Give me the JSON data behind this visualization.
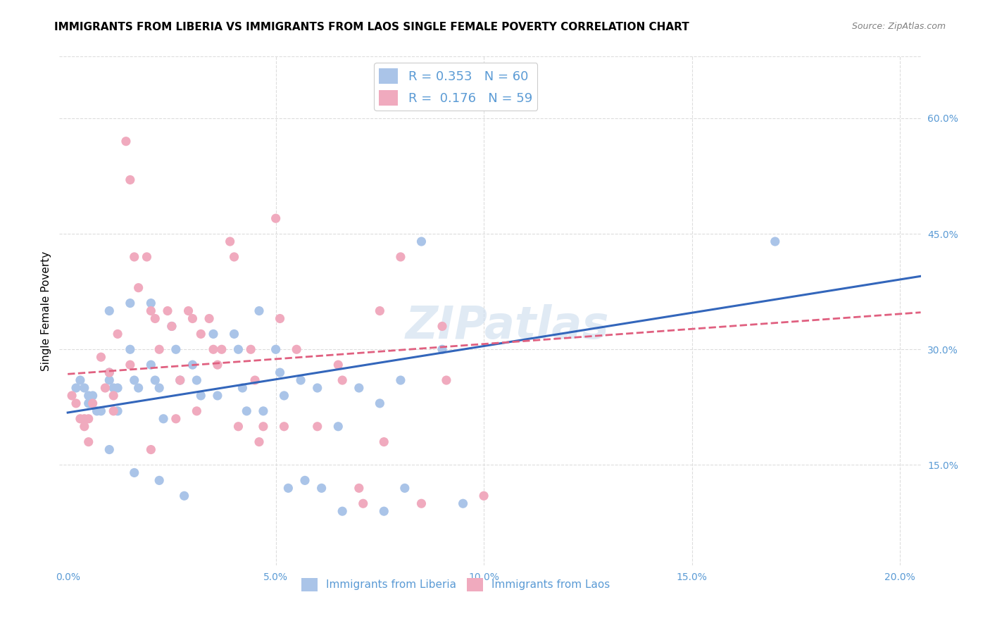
{
  "title": "IMMIGRANTS FROM LIBERIA VS IMMIGRANTS FROM LAOS SINGLE FEMALE POVERTY CORRELATION CHART",
  "source": "Source: ZipAtlas.com",
  "xlabel_ticks": [
    "0.0%",
    "5.0%",
    "10.0%",
    "15.0%",
    "20.0%"
  ],
  "xlabel_tick_vals": [
    0.0,
    0.05,
    0.1,
    0.15,
    0.2
  ],
  "ylabel": "Single Female Poverty",
  "right_ytick_labels": [
    "60.0%",
    "45.0%",
    "30.0%",
    "15.0%"
  ],
  "right_ytick_vals": [
    0.6,
    0.45,
    0.3,
    0.15
  ],
  "xlim": [
    -0.002,
    0.205
  ],
  "ylim": [
    0.02,
    0.68
  ],
  "legend_liberia_R": "0.353",
  "legend_liberia_N": "60",
  "legend_laos_R": "0.176",
  "legend_laos_N": "59",
  "liberia_color": "#aac4e8",
  "laos_color": "#f0aabe",
  "liberia_line_color": "#3366bb",
  "laos_line_color": "#e06080",
  "watermark": "ZIPatlas",
  "liberia_points_x": [
    0.002,
    0.003,
    0.004,
    0.005,
    0.005,
    0.006,
    0.007,
    0.008,
    0.01,
    0.01,
    0.01,
    0.01,
    0.011,
    0.012,
    0.012,
    0.015,
    0.015,
    0.016,
    0.016,
    0.017,
    0.02,
    0.02,
    0.021,
    0.022,
    0.022,
    0.023,
    0.025,
    0.026,
    0.027,
    0.028,
    0.03,
    0.031,
    0.032,
    0.035,
    0.036,
    0.04,
    0.041,
    0.042,
    0.043,
    0.046,
    0.047,
    0.05,
    0.051,
    0.052,
    0.053,
    0.056,
    0.057,
    0.06,
    0.061,
    0.065,
    0.066,
    0.07,
    0.075,
    0.076,
    0.08,
    0.081,
    0.085,
    0.09,
    0.095,
    0.17
  ],
  "liberia_points_y": [
    0.25,
    0.26,
    0.25,
    0.24,
    0.23,
    0.24,
    0.22,
    0.22,
    0.35,
    0.27,
    0.26,
    0.17,
    0.25,
    0.25,
    0.22,
    0.36,
    0.3,
    0.26,
    0.14,
    0.25,
    0.36,
    0.28,
    0.26,
    0.25,
    0.13,
    0.21,
    0.33,
    0.3,
    0.26,
    0.11,
    0.28,
    0.26,
    0.24,
    0.32,
    0.24,
    0.32,
    0.3,
    0.25,
    0.22,
    0.35,
    0.22,
    0.3,
    0.27,
    0.24,
    0.12,
    0.26,
    0.13,
    0.25,
    0.12,
    0.2,
    0.09,
    0.25,
    0.23,
    0.09,
    0.26,
    0.12,
    0.44,
    0.3,
    0.1,
    0.44
  ],
  "laos_points_x": [
    0.001,
    0.002,
    0.003,
    0.004,
    0.004,
    0.005,
    0.005,
    0.006,
    0.008,
    0.009,
    0.01,
    0.011,
    0.011,
    0.012,
    0.014,
    0.015,
    0.015,
    0.016,
    0.017,
    0.019,
    0.02,
    0.02,
    0.021,
    0.022,
    0.024,
    0.025,
    0.026,
    0.027,
    0.029,
    0.03,
    0.031,
    0.032,
    0.034,
    0.035,
    0.036,
    0.037,
    0.039,
    0.04,
    0.041,
    0.044,
    0.045,
    0.046,
    0.047,
    0.05,
    0.051,
    0.052,
    0.055,
    0.06,
    0.065,
    0.066,
    0.07,
    0.071,
    0.075,
    0.076,
    0.08,
    0.085,
    0.09,
    0.091,
    0.1
  ],
  "laos_points_y": [
    0.24,
    0.23,
    0.21,
    0.21,
    0.2,
    0.21,
    0.18,
    0.23,
    0.29,
    0.25,
    0.27,
    0.24,
    0.22,
    0.32,
    0.57,
    0.52,
    0.28,
    0.42,
    0.38,
    0.42,
    0.35,
    0.17,
    0.34,
    0.3,
    0.35,
    0.33,
    0.21,
    0.26,
    0.35,
    0.34,
    0.22,
    0.32,
    0.34,
    0.3,
    0.28,
    0.3,
    0.44,
    0.42,
    0.2,
    0.3,
    0.26,
    0.18,
    0.2,
    0.47,
    0.34,
    0.2,
    0.3,
    0.2,
    0.28,
    0.26,
    0.12,
    0.1,
    0.35,
    0.18,
    0.42,
    0.1,
    0.33,
    0.26,
    0.11
  ],
  "liberia_trend_x": [
    0.0,
    0.205
  ],
  "liberia_trend_y": [
    0.218,
    0.395
  ],
  "laos_trend_x": [
    0.0,
    0.205
  ],
  "laos_trend_y": [
    0.268,
    0.348
  ],
  "bg_color": "#ffffff",
  "grid_color": "#dddddd",
  "title_fontsize": 11,
  "tick_label_color": "#5b9bd5"
}
